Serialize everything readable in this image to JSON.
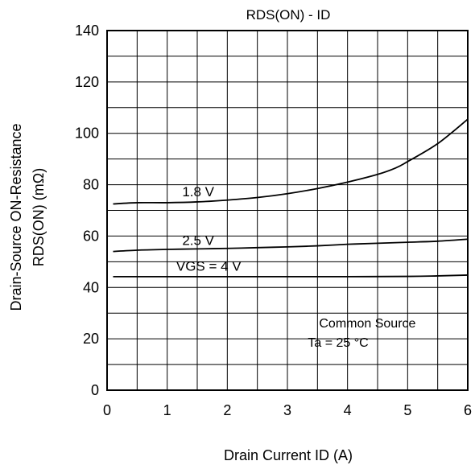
{
  "chart_data": {
    "type": "line",
    "title": "RDS(ON) - ID",
    "xlabel": "Drain Current ID (A)",
    "ylabel_lines": [
      "Drain-Source ON-Resistance",
      "RDS(ON)  (mΩ)"
    ],
    "xlim": [
      0,
      6
    ],
    "ylim": [
      0,
      140
    ],
    "x_ticks": [
      0,
      1,
      2,
      3,
      4,
      5,
      6
    ],
    "y_ticks": [
      0,
      20,
      40,
      60,
      80,
      100,
      120,
      140
    ],
    "x_minor_step": 0.5,
    "y_minor_step": 10,
    "grid": true,
    "series": [
      {
        "name": "1.8 V",
        "x": [
          0.1,
          0.5,
          1.0,
          1.5,
          2.0,
          2.5,
          3.0,
          3.5,
          4.0,
          4.5,
          4.8,
          5.0,
          5.5,
          6.0
        ],
        "y": [
          72.5,
          73.0,
          73.0,
          73.3,
          74.0,
          75.0,
          76.5,
          78.5,
          81.0,
          84.0,
          86.5,
          89.0,
          96.0,
          105.5
        ]
      },
      {
        "name": "2.5 V",
        "x": [
          0.1,
          0.5,
          1.0,
          1.5,
          2.0,
          2.5,
          3.0,
          3.5,
          4.0,
          4.5,
          5.0,
          5.5,
          6.0
        ],
        "y": [
          54.0,
          54.5,
          54.8,
          55.0,
          55.2,
          55.5,
          55.8,
          56.2,
          56.8,
          57.2,
          57.6,
          58.0,
          58.8
        ]
      },
      {
        "name": "VGS = 4 V",
        "x": [
          0.1,
          1.0,
          2.0,
          3.0,
          4.0,
          5.0,
          5.5,
          6.0
        ],
        "y": [
          44.2,
          44.2,
          44.2,
          44.2,
          44.2,
          44.3,
          44.5,
          44.8
        ]
      }
    ],
    "series_label_anchors": [
      {
        "name": "1.8 V",
        "x": 1.25,
        "y": 75.5
      },
      {
        "name": "2.5 V",
        "x": 1.25,
        "y": 56.5
      },
      {
        "name": "VGS = 4 V",
        "x": 1.15,
        "y": 46.5
      }
    ],
    "annotation_lines": [
      "Common Source",
      "Ta = 25 °C"
    ],
    "annotation_anchor": {
      "x": 3.3,
      "y": 24.5
    }
  }
}
